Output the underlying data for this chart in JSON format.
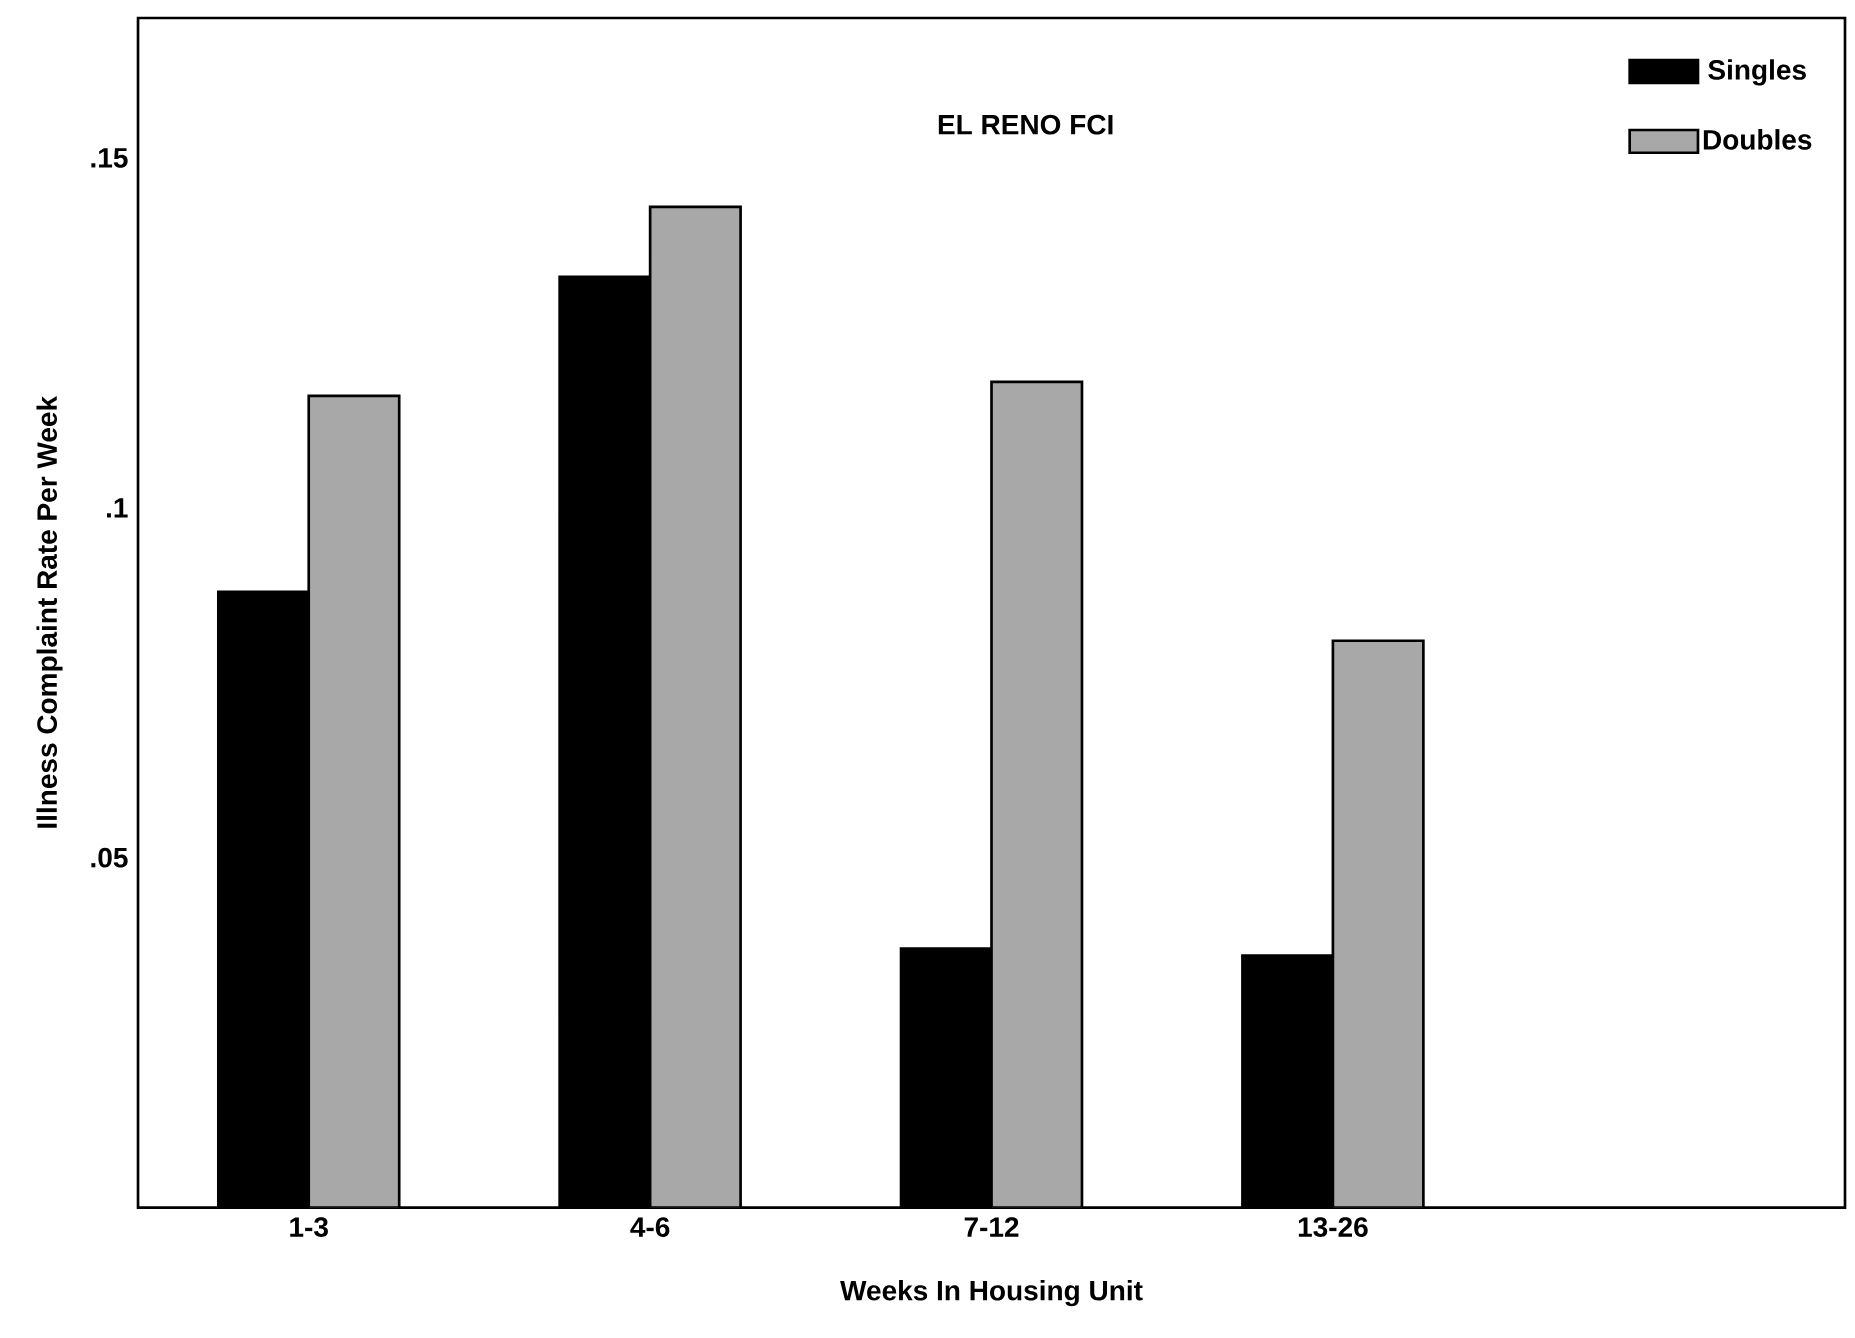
{
  "chart_data": {
    "type": "bar",
    "title": "EL RENO FCI",
    "xlabel": "Weeks In Housing Unit",
    "ylabel": "Illness Complaint Rate Per Week",
    "categories": [
      "1-3",
      "4-6",
      "7-12",
      "13-26"
    ],
    "series": [
      {
        "name": "Singles",
        "color": "#000000",
        "values": [
          0.088,
          0.133,
          0.037,
          0.036
        ]
      },
      {
        "name": "Doubles",
        "color": "#a8a8a8",
        "values": [
          0.116,
          0.143,
          0.118,
          0.081
        ]
      }
    ],
    "ylim": [
      0,
      0.17
    ],
    "yticks": [
      {
        "value": 0.05,
        "label": ".05"
      },
      {
        "value": 0.1,
        "label": ".1"
      },
      {
        "value": 0.15,
        "label": ".15"
      }
    ],
    "legend": "top right"
  }
}
